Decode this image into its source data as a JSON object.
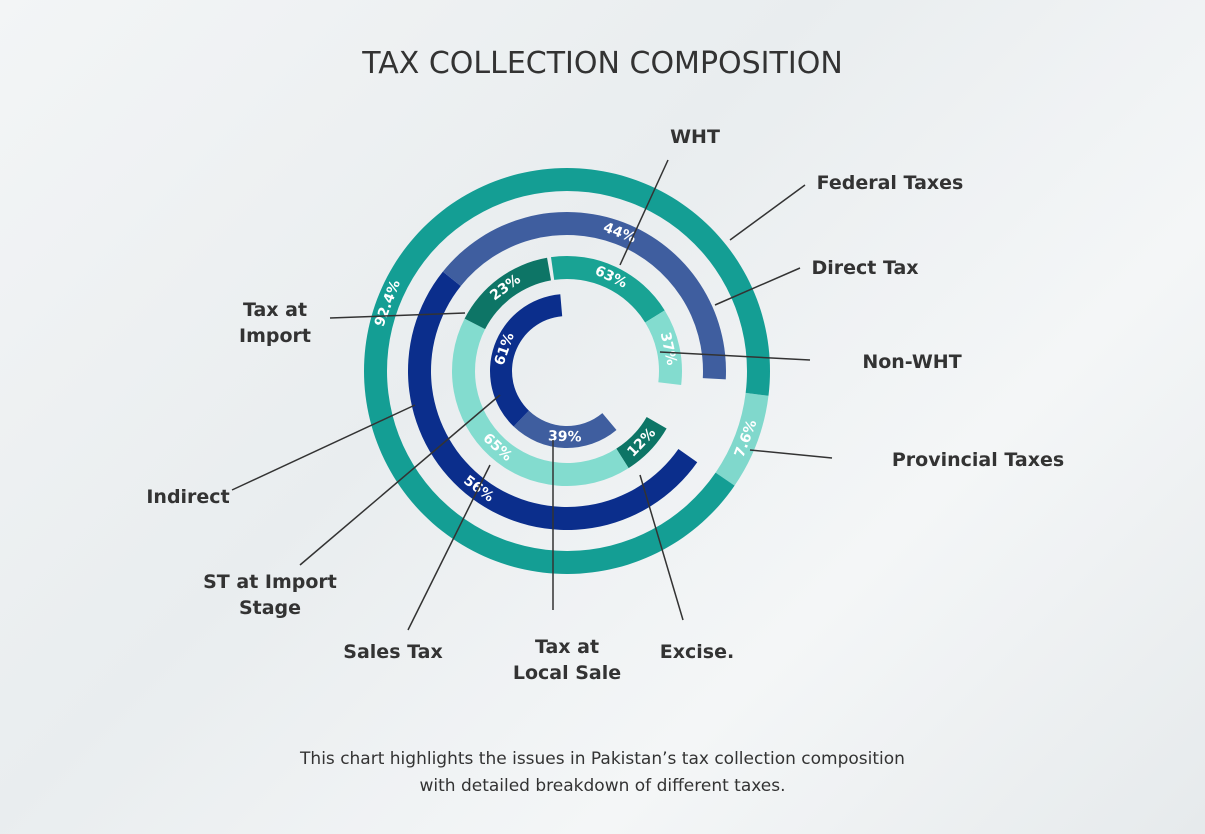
{
  "title": "TAX COLLECTION COMPOSITION",
  "chart_data": {
    "type": "nested-ring",
    "rings": [
      {
        "labels": [
          "Federal Taxes",
          "Provincial Taxes"
        ],
        "values": [
          92.4,
          7.6
        ],
        "value_labels": [
          "92.4%",
          "7.6%"
        ],
        "colors": [
          "#149e94",
          "#80d8cc"
        ]
      },
      {
        "labels": [
          "Direct Tax",
          "Indirect"
        ],
        "values": [
          44,
          56
        ],
        "value_labels": [
          "44%",
          "56%"
        ],
        "colors": [
          "#3f5e9f",
          "#0b2e8c"
        ]
      },
      {
        "labels": [
          "WHT",
          "Non-WHT",
          "Tax at\nImport",
          "Sales Tax",
          "Excise."
        ],
        "values": [
          63,
          37,
          23,
          65,
          12
        ],
        "value_labels": [
          "63%",
          "37%",
          "23%",
          "65%",
          "12%"
        ],
        "colors": [
          "#19a394",
          "#83dccf",
          "#0d7566",
          "#83dccf",
          "#0d7566"
        ]
      },
      {
        "labels": [
          "ST at Import\nStage",
          "Tax at\nLocal Sale"
        ],
        "values": [
          61,
          39
        ],
        "value_labels": [
          "61%",
          "39%"
        ],
        "colors": [
          "#0b2e8c",
          "#3f5e9f"
        ]
      }
    ]
  },
  "footer": [
    "This chart highlights the issues in Pakistan’s tax collection composition",
    "with detailed breakdown of different taxes."
  ]
}
